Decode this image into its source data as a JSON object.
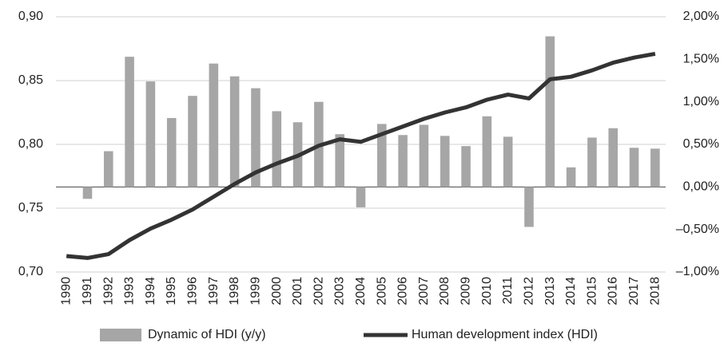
{
  "chart_data": {
    "type": "bar",
    "categories": [
      "1990",
      "1991",
      "1992",
      "1993",
      "1994",
      "1995",
      "1996",
      "1997",
      "1998",
      "1999",
      "2000",
      "2001",
      "2002",
      "2003",
      "2004",
      "2005",
      "2006",
      "2007",
      "2008",
      "2009",
      "2010",
      "2011",
      "2012",
      "2013",
      "2014",
      "2015",
      "2016",
      "2017",
      "2018"
    ],
    "series": [
      {
        "name": "Dynamic of HDI (y/y)",
        "type": "bar",
        "axis": "y2",
        "color": "#a6a6a6",
        "values": [
          null,
          -0.14,
          0.42,
          1.53,
          1.24,
          0.81,
          1.07,
          1.45,
          1.3,
          1.16,
          0.89,
          0.76,
          1.0,
          0.62,
          -0.24,
          0.74,
          0.61,
          0.73,
          0.6,
          0.48,
          0.83,
          0.59,
          -0.47,
          1.77,
          0.23,
          0.58,
          0.69,
          0.46,
          0.45
        ]
      },
      {
        "name": "Human development index (HDI)",
        "type": "line",
        "axis": "y",
        "color": "#333333",
        "values": [
          0.7125,
          0.711,
          0.714,
          0.725,
          0.734,
          0.741,
          0.749,
          0.759,
          0.769,
          0.778,
          0.785,
          0.791,
          0.799,
          0.804,
          0.802,
          0.808,
          0.814,
          0.82,
          0.825,
          0.829,
          0.835,
          0.839,
          0.836,
          0.851,
          0.853,
          0.858,
          0.864,
          0.868,
          0.871
        ]
      }
    ],
    "ylim": [
      0.7,
      0.9
    ],
    "yticks": [
      {
        "value": 0.7,
        "label": "0,70"
      },
      {
        "value": 0.75,
        "label": "0,75"
      },
      {
        "value": 0.8,
        "label": "0,80"
      },
      {
        "value": 0.85,
        "label": "0,85"
      },
      {
        "value": 0.9,
        "label": "0,90"
      }
    ],
    "y2lim": [
      -1.0,
      2.0
    ],
    "y2ticks": [
      {
        "value": -1.0,
        "label": "–1,00%"
      },
      {
        "value": -0.5,
        "label": "–0,50%"
      },
      {
        "value": 0,
        "label": "0,00%"
      },
      {
        "value": 0.5,
        "label": "0,50%"
      },
      {
        "value": 1.0,
        "label": "1,00%"
      },
      {
        "value": 1.5,
        "label": "1,50%"
      },
      {
        "value": 2.0,
        "label": "2,00%"
      }
    ],
    "grid": true,
    "legend": "bottom"
  }
}
